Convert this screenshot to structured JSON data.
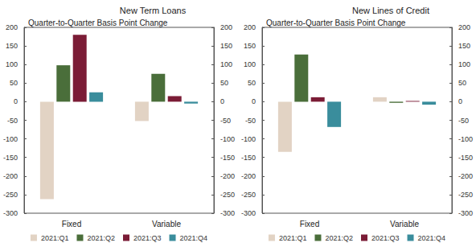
{
  "chart_data": [
    {
      "type": "bar",
      "title": "New Term Loans",
      "subtitle": "Quarter-to-Quarter Basis Point Change",
      "categories": [
        "Fixed",
        "Variable"
      ],
      "series": [
        {
          "name": "2021:Q1",
          "color": "#e2d3c4",
          "values": [
            -262,
            -52
          ]
        },
        {
          "name": "2021:Q2",
          "color": "#4a6e3a",
          "values": [
            98,
            75
          ]
        },
        {
          "name": "2021:Q3",
          "color": "#7b1c36",
          "values": [
            180,
            15
          ]
        },
        {
          "name": "2021:Q4",
          "color": "#3a8d9c",
          "values": [
            25,
            -5
          ]
        }
      ],
      "ylim": [
        -300,
        200
      ],
      "yticks": [
        -300,
        -250,
        -200,
        -150,
        -100,
        -50,
        0,
        50,
        100,
        150,
        200
      ],
      "y2lim": [
        -300,
        200
      ],
      "y2ticks": [
        -300,
        -250,
        -200,
        -150,
        -100,
        -50,
        0,
        50,
        100,
        150,
        200
      ],
      "grid": false,
      "legend": "bottom"
    },
    {
      "type": "bar",
      "title": "New Lines of Credit",
      "subtitle": "Quarter-to-Quarter Basis Point Change",
      "categories": [
        "Fixed",
        "Variable"
      ],
      "series": [
        {
          "name": "2021:Q1",
          "color": "#e2d3c4",
          "values": [
            -135,
            12
          ]
        },
        {
          "name": "2021:Q2",
          "color": "#4a6e3a",
          "values": [
            127,
            -3
          ]
        },
        {
          "name": "2021:Q3",
          "color": "#7b1c36",
          "values": [
            12,
            2
          ]
        },
        {
          "name": "2021:Q4",
          "color": "#3a8d9c",
          "values": [
            -68,
            -8
          ]
        }
      ],
      "ylim": [
        -300,
        200
      ],
      "yticks": [
        -300,
        -250,
        -200,
        -150,
        -100,
        -50,
        0,
        50,
        100,
        150,
        200
      ],
      "y2lim": [
        -300,
        200
      ],
      "y2ticks": [
        -300,
        -250,
        -200,
        -150,
        -100,
        -50,
        0,
        50,
        100,
        150,
        200
      ],
      "grid": false,
      "legend": "bottom"
    }
  ]
}
